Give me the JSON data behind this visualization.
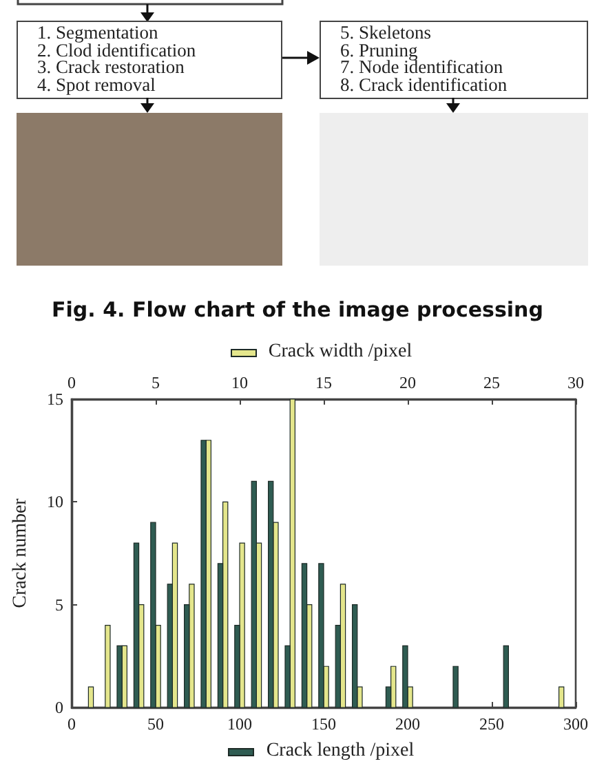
{
  "chart_data": {
    "type": "bar",
    "title": "Fig. 4. Flow chart of the image processing",
    "annotations": [
      "1. Segmentation\n2. Clod identification\n3. Crack restoration\n4. Spot removal",
      "5. Skeletons\n6. Pruning\n7. Node identification\n8. Crack identification"
    ],
    "ylabel": "Crack number",
    "xlabel": "Crack length /pixel",
    "x2label": "Crack width /pixel",
    "xlim": [
      0,
      300
    ],
    "xticks": [
      0,
      50,
      100,
      150,
      200,
      250,
      300
    ],
    "x2lim": [
      0,
      30
    ],
    "x2ticks": [
      0,
      5,
      10,
      15,
      20,
      25,
      30
    ],
    "ylim": [
      0,
      15
    ],
    "yticks": [
      0,
      5,
      10,
      15
    ],
    "series": [
      {
        "axis": "x2",
        "color": "#e4e68c",
        "x": [
          1,
          2,
          3,
          4,
          5,
          6,
          7,
          8,
          9,
          10,
          11,
          12,
          13,
          14,
          15,
          16,
          17,
          19,
          20,
          29
        ],
        "values": [
          1,
          4,
          3,
          5,
          4,
          8,
          6,
          13,
          10,
          8,
          8,
          9,
          15,
          5,
          2,
          6,
          1,
          2,
          1,
          1
        ]
      },
      {
        "color": "#2f5c52",
        "x": [
          30,
          40,
          50,
          60,
          70,
          80,
          90,
          100,
          110,
          120,
          130,
          140,
          150,
          160,
          170,
          190,
          200,
          230,
          260
        ],
        "values": [
          3,
          8,
          9,
          6,
          5,
          13,
          7,
          4,
          11,
          11,
          3,
          7,
          7,
          4,
          5,
          1,
          3,
          2,
          3
        ]
      }
    ],
    "grid": false
  }
}
